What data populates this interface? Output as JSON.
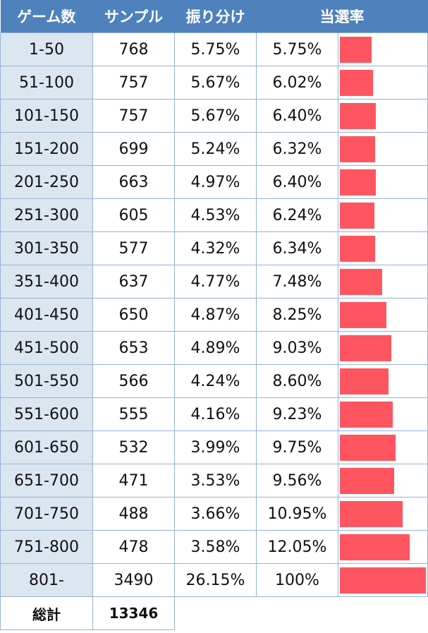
{
  "chart_data": {
    "type": "table",
    "columns": [
      "ゲーム数",
      "サンプル",
      "振り分け",
      "当選率"
    ],
    "rows": [
      {
        "games": "1-50",
        "samples": "768",
        "share": "5.75%",
        "rate": "5.75%",
        "rate_value": 5.75
      },
      {
        "games": "51-100",
        "samples": "757",
        "share": "5.67%",
        "rate": "6.02%",
        "rate_value": 6.02
      },
      {
        "games": "101-150",
        "samples": "757",
        "share": "5.67%",
        "rate": "6.40%",
        "rate_value": 6.4
      },
      {
        "games": "151-200",
        "samples": "699",
        "share": "5.24%",
        "rate": "6.32%",
        "rate_value": 6.32
      },
      {
        "games": "201-250",
        "samples": "663",
        "share": "4.97%",
        "rate": "6.40%",
        "rate_value": 6.4
      },
      {
        "games": "251-300",
        "samples": "605",
        "share": "4.53%",
        "rate": "6.24%",
        "rate_value": 6.24
      },
      {
        "games": "301-350",
        "samples": "577",
        "share": "4.32%",
        "rate": "6.34%",
        "rate_value": 6.34
      },
      {
        "games": "351-400",
        "samples": "637",
        "share": "4.77%",
        "rate": "7.48%",
        "rate_value": 7.48
      },
      {
        "games": "401-450",
        "samples": "650",
        "share": "4.87%",
        "rate": "8.25%",
        "rate_value": 8.25
      },
      {
        "games": "451-500",
        "samples": "653",
        "share": "4.89%",
        "rate": "9.03%",
        "rate_value": 9.03
      },
      {
        "games": "501-550",
        "samples": "566",
        "share": "4.24%",
        "rate": "8.60%",
        "rate_value": 8.6
      },
      {
        "games": "551-600",
        "samples": "555",
        "share": "4.16%",
        "rate": "9.23%",
        "rate_value": 9.23
      },
      {
        "games": "601-650",
        "samples": "532",
        "share": "3.99%",
        "rate": "9.75%",
        "rate_value": 9.75
      },
      {
        "games": "651-700",
        "samples": "471",
        "share": "3.53%",
        "rate": "9.56%",
        "rate_value": 9.56
      },
      {
        "games": "701-750",
        "samples": "488",
        "share": "3.66%",
        "rate": "10.95%",
        "rate_value": 10.95
      },
      {
        "games": "751-800",
        "samples": "478",
        "share": "3.58%",
        "rate": "12.05%",
        "rate_value": 12.05
      },
      {
        "games": "801-",
        "samples": "3490",
        "share": "26.15%",
        "rate": "100%",
        "rate_value": 100
      }
    ],
    "total_label": "総計",
    "total_samples": "13346",
    "bar_color": "#ff5560"
  },
  "colors": {
    "header_bg": "#4f81bd",
    "label_bg": "#dce6f1",
    "border": "#95b3d7"
  }
}
